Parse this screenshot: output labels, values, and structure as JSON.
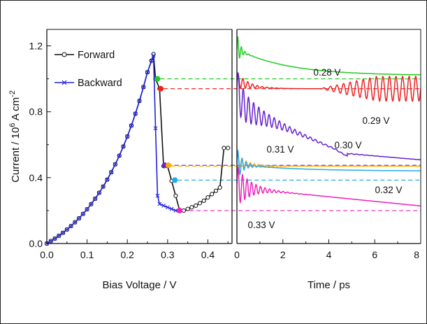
{
  "chart_data": [
    {
      "type": "line",
      "xlabel": "Bias Voltage / V",
      "ylabel_main": "Current / 10",
      "ylabel_sup": "6",
      "ylabel_rest": " A cm",
      "ylabel_sup2": "-2",
      "xlim": [
        0,
        0.46
      ],
      "ylim": [
        0,
        1.3
      ],
      "xticks": [
        "0.0",
        "0.1",
        "0.2",
        "0.3",
        "0.4"
      ],
      "yticks": [
        "0.0",
        "0.4",
        "0.8",
        "1.2"
      ],
      "legend_position": "top-left",
      "series": [
        {
          "name": "Forward",
          "color": "#111111",
          "marker": "circle",
          "x": [
            0.0,
            0.01,
            0.02,
            0.03,
            0.04,
            0.05,
            0.06,
            0.07,
            0.08,
            0.09,
            0.1,
            0.11,
            0.12,
            0.13,
            0.14,
            0.15,
            0.16,
            0.17,
            0.18,
            0.19,
            0.2,
            0.21,
            0.22,
            0.23,
            0.24,
            0.25,
            0.26,
            0.265,
            0.27,
            0.28,
            0.29,
            0.3,
            0.31,
            0.32,
            0.33,
            0.34,
            0.35,
            0.36,
            0.37,
            0.38,
            0.39,
            0.4,
            0.41,
            0.42,
            0.43,
            0.44,
            0.45
          ],
          "y": [
            0.0,
            0.015,
            0.03,
            0.047,
            0.065,
            0.085,
            0.106,
            0.129,
            0.153,
            0.18,
            0.208,
            0.239,
            0.272,
            0.308,
            0.346,
            0.388,
            0.433,
            0.481,
            0.533,
            0.589,
            0.65,
            0.716,
            0.788,
            0.866,
            0.95,
            1.04,
            1.11,
            1.15,
            1.0,
            0.94,
            0.47,
            0.47,
            0.38,
            0.29,
            0.2,
            0.2,
            0.21,
            0.22,
            0.23,
            0.245,
            0.26,
            0.28,
            0.3,
            0.32,
            0.34,
            0.58,
            0.58
          ]
        },
        {
          "name": "Backward",
          "color": "#2222dd",
          "marker": "x",
          "x": [
            0.0,
            0.01,
            0.02,
            0.03,
            0.04,
            0.05,
            0.06,
            0.07,
            0.08,
            0.09,
            0.1,
            0.11,
            0.12,
            0.13,
            0.14,
            0.15,
            0.16,
            0.17,
            0.18,
            0.19,
            0.2,
            0.21,
            0.22,
            0.23,
            0.24,
            0.25,
            0.26,
            0.265,
            0.27,
            0.275,
            0.28,
            0.29,
            0.3,
            0.31,
            0.32,
            0.33
          ],
          "y": [
            0.0,
            0.015,
            0.03,
            0.047,
            0.065,
            0.085,
            0.106,
            0.129,
            0.153,
            0.18,
            0.208,
            0.239,
            0.272,
            0.308,
            0.346,
            0.388,
            0.433,
            0.481,
            0.533,
            0.589,
            0.65,
            0.716,
            0.788,
            0.866,
            0.95,
            1.04,
            1.11,
            1.14,
            0.7,
            0.29,
            0.24,
            0.23,
            0.22,
            0.21,
            0.2,
            0.2
          ]
        }
      ],
      "highlight_points": [
        {
          "x": 0.275,
          "y": 1.0,
          "color": "#22cc22"
        },
        {
          "x": 0.283,
          "y": 0.94,
          "color": "#ee2222"
        },
        {
          "x": 0.293,
          "y": 0.475,
          "color": "#6622cc"
        },
        {
          "x": 0.302,
          "y": 0.475,
          "color": "#ffaa00"
        },
        {
          "x": 0.318,
          "y": 0.385,
          "color": "#22aaee"
        },
        {
          "x": 0.33,
          "y": 0.2,
          "color": "#ee22bb"
        }
      ],
      "reference_lines": [
        {
          "y": 1.0,
          "color": "#22cc22"
        },
        {
          "y": 0.94,
          "color": "#ee2222"
        },
        {
          "y": 0.475,
          "color": "#6622cc"
        },
        {
          "y": 0.47,
          "color": "#ffaa00"
        },
        {
          "y": 0.385,
          "color": "#22aaee"
        },
        {
          "y": 0.2,
          "color": "#ee22bb"
        }
      ]
    },
    {
      "type": "line",
      "xlabel": "Time / ps",
      "xlim": [
        0,
        8
      ],
      "ylim": [
        0,
        1.3
      ],
      "xticks": [
        "0",
        "2",
        "4",
        "6",
        "8"
      ],
      "series": [
        {
          "name": "0.28 V",
          "color": "#22cc22",
          "label": "0.28 V",
          "final": 1.02
        },
        {
          "name": "0.29 V",
          "color": "#ee2222",
          "label": "0.29 V",
          "final": 0.94
        },
        {
          "name": "0.30 V",
          "color": "#6622cc",
          "label": "0.30 V",
          "final": 0.5
        },
        {
          "name": "0.31 V",
          "color": "#ffaa00",
          "label": "0.31 V",
          "final": 0.47
        },
        {
          "name": "0.32 V",
          "color": "#22aaee",
          "label": "0.32 V",
          "final": 0.44
        },
        {
          "name": "0.33 V",
          "color": "#ee22bb",
          "label": "0.33 V",
          "final": 0.22
        }
      ]
    }
  ]
}
